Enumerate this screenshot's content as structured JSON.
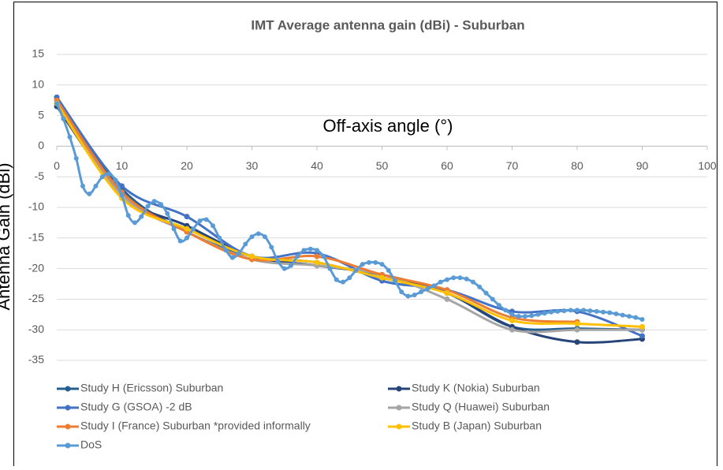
{
  "chart_data": {
    "type": "line",
    "title": "IMT Average antenna gain (dBi) - Suburban",
    "x_label": "Off-axis angle (°)",
    "y_label": "Antenna Gain (dBi)",
    "xlim": [
      0,
      100
    ],
    "ylim": [
      -35,
      15
    ],
    "xticks": [
      0,
      10,
      20,
      30,
      40,
      50,
      60,
      70,
      80,
      90,
      100
    ],
    "yticks": [
      -35,
      -30,
      -25,
      -20,
      -15,
      -10,
      -5,
      0,
      5,
      10,
      15
    ],
    "grid": true,
    "legend_position": "bottom",
    "x": [
      0,
      10,
      20,
      30,
      40,
      50,
      60,
      70,
      80,
      90
    ],
    "series": [
      {
        "name": "Study H (Ericsson) Suburban",
        "color": "#255e91",
        "values": [
          8,
          -7,
          -14,
          -18,
          -19,
          -21.5,
          -24,
          -29.5,
          -29.8,
          -30
        ]
      },
      {
        "name": "Study K (Nokia) Suburban",
        "color": "#264478",
        "values": [
          6.5,
          -8,
          -13,
          -18,
          -19.5,
          -21,
          -24,
          -29.5,
          -32,
          -31.5
        ]
      },
      {
        "name": "Study G (GSOA) -2 dB",
        "color": "#4472c4",
        "values": [
          8,
          -6.5,
          -11.5,
          -18,
          -17.5,
          -22,
          -23.5,
          -27,
          -27,
          -31
        ]
      },
      {
        "name": "Study Q (Huawei) Suburban",
        "color": "#a5a5a5",
        "values": [
          7,
          -8,
          -14,
          -18.5,
          -19.5,
          -21,
          -25,
          -30,
          -30,
          -30
        ]
      },
      {
        "name": "Study I (France) Suburban *provided informally",
        "color": "#ed7d31",
        "values": [
          7.5,
          -7.5,
          -14,
          -18.5,
          -18,
          -21,
          -23.5,
          -28,
          -28.7,
          null
        ]
      },
      {
        "name": "Study B (Japan) Suburban",
        "color": "#ffc000",
        "values": [
          7,
          -8.5,
          -13.5,
          -18,
          -19,
          -21.5,
          -24,
          -28.5,
          -29,
          -29.5
        ]
      },
      {
        "name": "DoS",
        "color": "#5b9bd5",
        "x": [
          0,
          1,
          2,
          3,
          4,
          5,
          6,
          7,
          8,
          9,
          10,
          11,
          12,
          13,
          14,
          15,
          16,
          17,
          18,
          19,
          20,
          21,
          22,
          23,
          24,
          25,
          26,
          27,
          28,
          29,
          30,
          31,
          32,
          33,
          34,
          35,
          36,
          37,
          38,
          39,
          40,
          41,
          42,
          43,
          44,
          45,
          46,
          47,
          48,
          49,
          50,
          51,
          52,
          53,
          54,
          55,
          56,
          57,
          58,
          59,
          60,
          61,
          62,
          63,
          64,
          65,
          66,
          67,
          68,
          69,
          70,
          71,
          72,
          73,
          74,
          75,
          76,
          77,
          78,
          79,
          80,
          81,
          82,
          83,
          84,
          85,
          86,
          87,
          88,
          89,
          90
        ],
        "values": [
          7,
          4.5,
          1.5,
          -2,
          -6.5,
          -7.8,
          -6.5,
          -5,
          -4.5,
          -5.5,
          -8,
          -11.3,
          -12.5,
          -11.5,
          -9.8,
          -9,
          -9.5,
          -11,
          -13.5,
          -15.5,
          -15,
          -13.5,
          -12.2,
          -12,
          -13,
          -15,
          -17,
          -18.2,
          -17.5,
          -16,
          -14.8,
          -14.3,
          -14.8,
          -16.5,
          -18.8,
          -20,
          -19.5,
          -18,
          -17,
          -16.8,
          -17,
          -18,
          -20,
          -21.8,
          -22.2,
          -21.5,
          -20.3,
          -19.3,
          -19,
          -19,
          -19.3,
          -20.3,
          -22,
          -23.8,
          -24.5,
          -24.3,
          -23.8,
          -23.3,
          -22.8,
          -22.2,
          -21.8,
          -21.5,
          -21.5,
          -21.7,
          -22.2,
          -23,
          -24,
          -25,
          -26,
          -26.8,
          -27.5,
          -27.8,
          -27.8,
          -27.7,
          -27.5,
          -27.3,
          -27.1,
          -27,
          -26.9,
          -26.8,
          -26.8,
          -26.8,
          -26.9,
          -27,
          -27.1,
          -27.2,
          -27.4,
          -27.6,
          -27.8,
          -28,
          -28.3
        ]
      }
    ]
  }
}
